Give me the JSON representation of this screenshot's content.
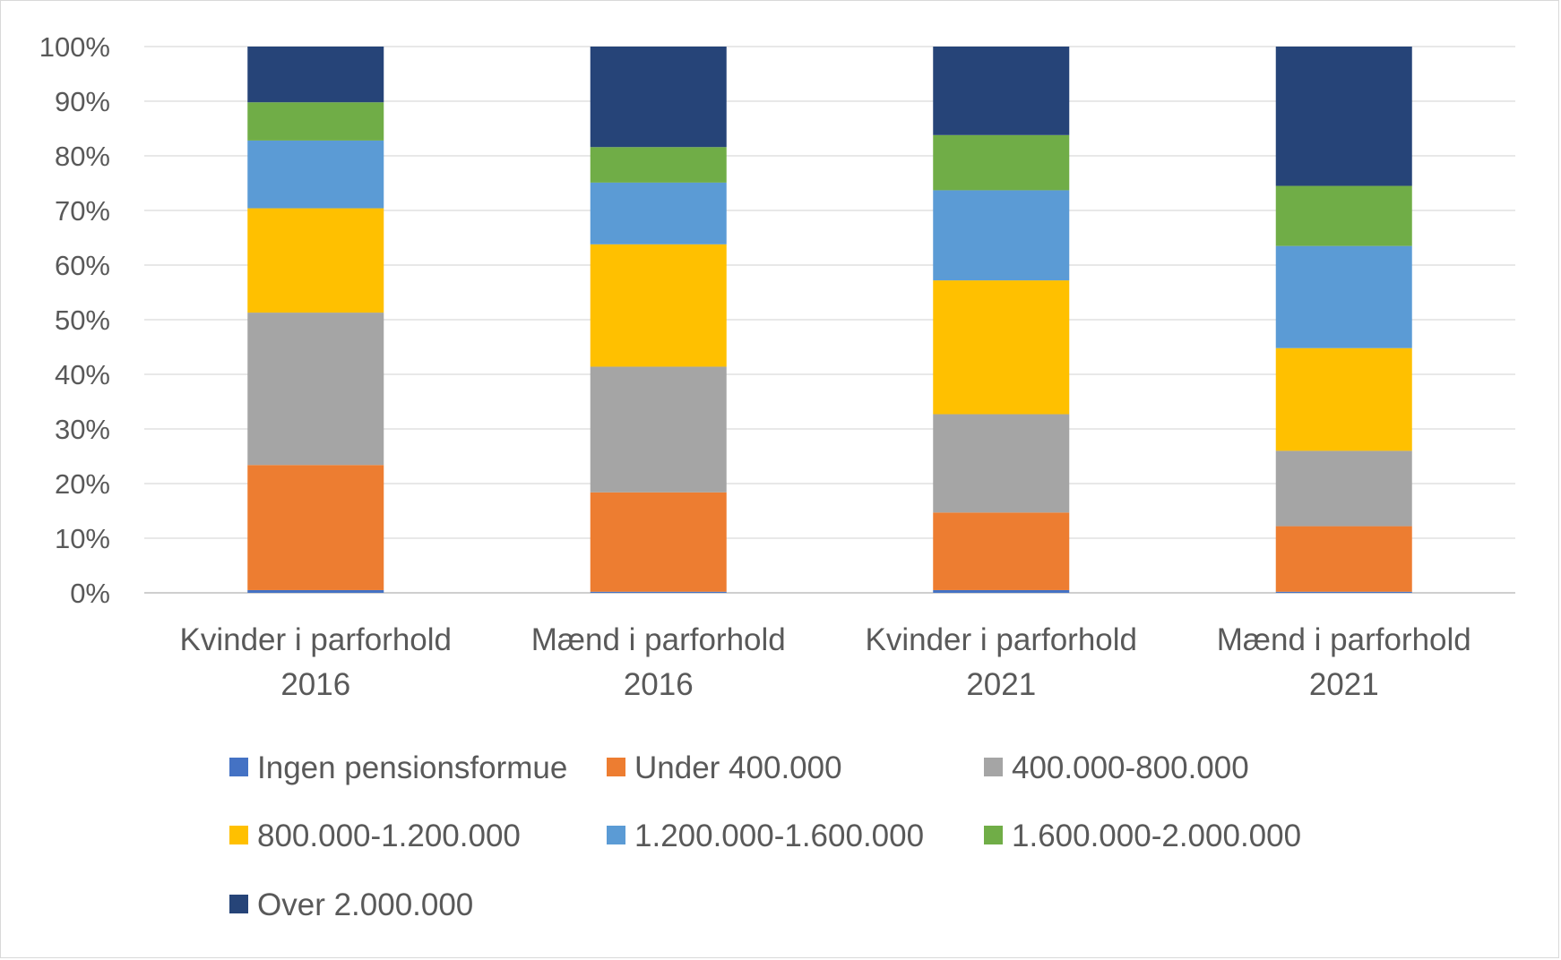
{
  "chart_data": {
    "type": "bar",
    "stacked": true,
    "percent": true,
    "title": "",
    "xlabel": "",
    "ylabel": "",
    "ylim": [
      0,
      100
    ],
    "yticks": [
      "0%",
      "10%",
      "20%",
      "30%",
      "40%",
      "50%",
      "60%",
      "70%",
      "80%",
      "90%",
      "100%"
    ],
    "grid": true,
    "legend_position": "bottom",
    "categories": [
      [
        "Kvinder i parforhold",
        "2016"
      ],
      [
        "Mænd i parforhold",
        "2016"
      ],
      [
        "Kvinder i parforhold",
        "2021"
      ],
      [
        "Mænd i parforhold",
        "2021"
      ]
    ],
    "series": [
      {
        "name": "Ingen pensionsformue",
        "color": "#4472C4",
        "values": [
          0.5,
          0.2,
          0.5,
          0.2
        ]
      },
      {
        "name": "Under 400.000",
        "color": "#ED7D31",
        "values": [
          22.9,
          18.2,
          14.2,
          12.0
        ]
      },
      {
        "name": "400.000-800.000",
        "color": "#A5A5A5",
        "values": [
          27.9,
          23.0,
          18.0,
          13.8
        ]
      },
      {
        "name": "800.000-1.200.000",
        "color": "#FFC000",
        "values": [
          19.1,
          22.4,
          24.5,
          18.8
        ]
      },
      {
        "name": "1.200.000-1.600.000",
        "color": "#5B9BD5",
        "values": [
          12.4,
          11.3,
          16.5,
          18.7
        ]
      },
      {
        "name": "1.600.000-2.000.000",
        "color": "#70AD47",
        "values": [
          7.0,
          6.5,
          10.1,
          11.0
        ]
      },
      {
        "name": "Over 2.000.000",
        "color": "#264478",
        "values": [
          10.2,
          18.4,
          16.2,
          25.5
        ]
      }
    ]
  }
}
